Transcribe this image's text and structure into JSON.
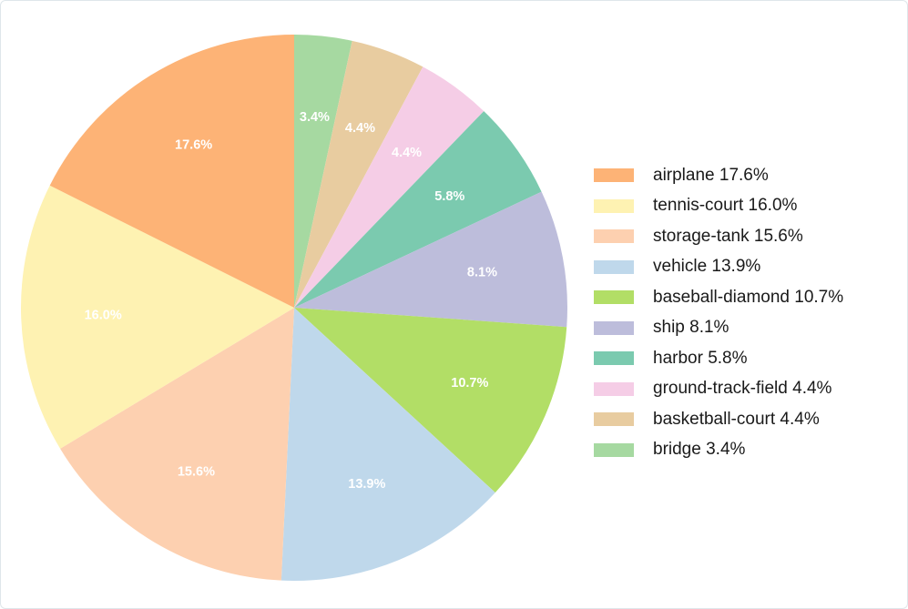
{
  "chart_data": {
    "type": "pie",
    "title": "",
    "start_angle_deg": 90,
    "direction": "clockwise",
    "legend_position": "right",
    "slices": [
      {
        "name": "bridge",
        "value": 3.4,
        "label": "3.4%",
        "legend": "bridge 3.4%",
        "color": "#a6d9a1"
      },
      {
        "name": "basketball-court",
        "value": 4.4,
        "label": "4.4%",
        "legend": "basketball-court 4.4%",
        "color": "#e8cca0"
      },
      {
        "name": "ground-track-field",
        "value": 4.4,
        "label": "4.4%",
        "legend": "ground-track-field 4.4%",
        "color": "#f5cde6"
      },
      {
        "name": "harbor",
        "value": 5.8,
        "label": "5.8%",
        "legend": "harbor 5.8%",
        "color": "#7bcaaf"
      },
      {
        "name": "ship",
        "value": 8.1,
        "label": "8.1%",
        "legend": "ship 8.1%",
        "color": "#bdbddb"
      },
      {
        "name": "baseball-diamond",
        "value": 10.7,
        "label": "10.7%",
        "legend": "baseball-diamond 10.7%",
        "color": "#b2de66"
      },
      {
        "name": "vehicle",
        "value": 13.9,
        "label": "13.9%",
        "legend": "vehicle 13.9%",
        "color": "#bfd8eb"
      },
      {
        "name": "storage-tank",
        "value": 15.6,
        "label": "15.6%",
        "legend": "storage-tank 15.6%",
        "color": "#fdd0b0"
      },
      {
        "name": "tennis-court",
        "value": 16.0,
        "label": "16.0%",
        "legend": "tennis-court 16.0%",
        "color": "#fef2b2"
      },
      {
        "name": "airplane",
        "value": 17.6,
        "label": "17.6%",
        "legend": "airplane 17.6%",
        "color": "#fdb376"
      }
    ],
    "legend_order": [
      "airplane",
      "tennis-court",
      "storage-tank",
      "vehicle",
      "baseball-diamond",
      "ship",
      "harbor",
      "ground-track-field",
      "basketball-court",
      "bridge"
    ]
  }
}
